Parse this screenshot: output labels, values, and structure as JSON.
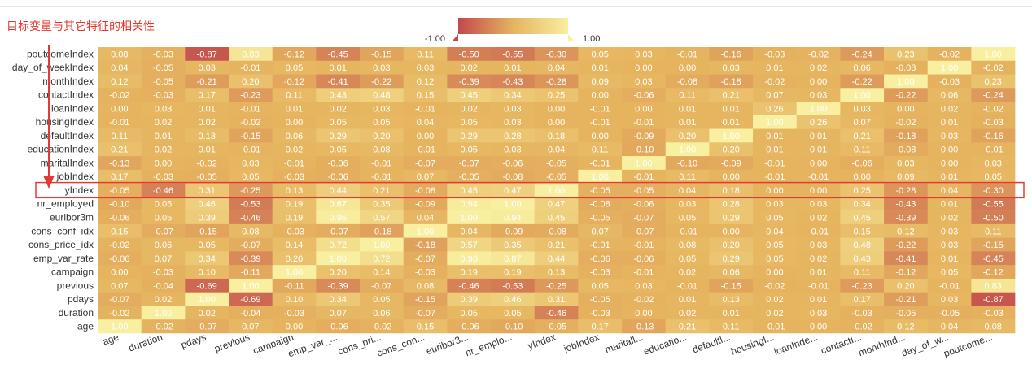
{
  "title": "目标变量与其它特征的相关性",
  "colors": {
    "low": "#c2484d",
    "mid": "#e6b45f",
    "high": "#f8efa0",
    "highlight": "#e53935",
    "title": "#e8342a"
  },
  "chart_data": {
    "type": "heatmap",
    "title": "目标变量与其它特征的相关性",
    "visual_map": {
      "min": -1.0,
      "max": 1.0,
      "min_label": "-1.00",
      "max_label": "1.00",
      "orient": "horizontal",
      "position": "top-center"
    },
    "x_tick_labels": [
      "age",
      "duration",
      "pdays",
      "previous",
      "campaign",
      "emp_var_...",
      "cons_pri...",
      "cons_con...",
      "euribor3...",
      "nr_emplo...",
      "yIndex",
      "jobIndex",
      "maritall...",
      "educatio...",
      "defaultl...",
      "housingI...",
      "loanInde...",
      "contactI...",
      "monthInd...",
      "day_of_w...",
      "poutcome..."
    ],
    "y_tick_labels": [
      "poutcomeIndex",
      "day_of_weekIndex",
      "monthIndex",
      "contactIndex",
      "loanIndex",
      "housingIndex",
      "defaultIndex",
      "educationIndex",
      "maritalIndex",
      "jobIndex",
      "yIndex",
      "nr_employed",
      "euribor3m",
      "cons_conf_idx",
      "cons_price_idx",
      "emp_var_rate",
      "campaign",
      "previous",
      "pdays",
      "duration",
      "age"
    ],
    "highlighted_row": "yIndex",
    "values": [
      [
        0.08,
        -0.03,
        -0.87,
        0.83,
        -0.12,
        -0.45,
        -0.15,
        0.11,
        -0.5,
        -0.55,
        -0.3,
        0.05,
        0.03,
        -0.01,
        -0.16,
        -0.03,
        -0.02,
        -0.24,
        0.23,
        -0.02,
        1.0
      ],
      [
        0.04,
        -0.05,
        0.03,
        -0.01,
        0.05,
        0.01,
        0.03,
        0.03,
        0.02,
        0.01,
        0.04,
        0.01,
        -0.0,
        0.0,
        0.03,
        0.01,
        0.02,
        0.06,
        -0.03,
        1.0,
        -0.02
      ],
      [
        0.12,
        -0.05,
        -0.21,
        0.2,
        -0.12,
        -0.41,
        -0.22,
        0.12,
        -0.39,
        -0.43,
        -0.28,
        0.09,
        0.03,
        -0.08,
        -0.18,
        -0.02,
        0.0,
        -0.22,
        1.0,
        -0.03,
        0.23
      ],
      [
        -0.02,
        -0.03,
        0.17,
        -0.23,
        0.11,
        0.43,
        0.48,
        0.15,
        0.45,
        0.34,
        0.25,
        0.0,
        -0.06,
        0.11,
        0.21,
        0.07,
        0.03,
        1.0,
        -0.22,
        0.06,
        -0.24
      ],
      [
        0.0,
        0.03,
        0.01,
        -0.01,
        0.01,
        0.02,
        0.03,
        -0.01,
        0.02,
        0.03,
        0.0,
        -0.01,
        0.0,
        0.01,
        0.01,
        0.26,
        1.0,
        0.03,
        0.0,
        0.02,
        -0.02
      ],
      [
        -0.01,
        0.02,
        0.02,
        -0.02,
        -0.0,
        0.05,
        0.05,
        0.04,
        0.05,
        0.03,
        0.0,
        -0.01,
        -0.01,
        0.01,
        0.01,
        1.0,
        0.26,
        0.07,
        -0.02,
        0.01,
        -0.03
      ],
      [
        0.11,
        0.01,
        0.13,
        -0.15,
        0.06,
        0.29,
        0.2,
        -0.0,
        0.29,
        0.28,
        0.18,
        0.0,
        -0.09,
        0.2,
        1.0,
        0.01,
        0.01,
        0.21,
        -0.18,
        0.03,
        -0.16
      ],
      [
        0.21,
        0.02,
        0.01,
        -0.01,
        0.02,
        0.05,
        0.08,
        -0.01,
        0.05,
        0.03,
        0.04,
        0.11,
        -0.1,
        1.0,
        0.2,
        0.01,
        0.01,
        0.11,
        -0.08,
        0.0,
        -0.01
      ],
      [
        -0.13,
        -0.0,
        -0.02,
        0.03,
        -0.01,
        -0.06,
        -0.01,
        -0.07,
        -0.07,
        -0.06,
        -0.05,
        -0.01,
        1.0,
        -0.1,
        -0.09,
        -0.01,
        0.0,
        -0.06,
        0.03,
        -0.0,
        0.03
      ],
      [
        0.17,
        -0.03,
        -0.05,
        0.05,
        -0.03,
        -0.06,
        -0.01,
        0.07,
        -0.05,
        -0.08,
        -0.05,
        1.0,
        -0.01,
        0.11,
        0.0,
        -0.01,
        -0.01,
        0.0,
        0.09,
        0.01,
        0.05
      ],
      [
        -0.05,
        -0.46,
        0.31,
        -0.25,
        0.13,
        0.44,
        0.21,
        -0.08,
        0.45,
        0.47,
        1.0,
        -0.05,
        -0.05,
        0.04,
        0.18,
        0.0,
        0.0,
        0.25,
        -0.28,
        0.04,
        -0.3
      ],
      [
        -0.1,
        0.05,
        0.46,
        -0.53,
        0.19,
        0.87,
        0.35,
        -0.09,
        0.94,
        1.0,
        0.47,
        -0.08,
        -0.06,
        0.03,
        0.28,
        0.03,
        0.03,
        0.34,
        -0.43,
        0.01,
        -0.55
      ],
      [
        -0.06,
        0.05,
        0.39,
        -0.46,
        0.19,
        0.96,
        0.57,
        0.04,
        1.0,
        0.94,
        0.45,
        -0.05,
        -0.07,
        0.05,
        0.29,
        0.05,
        0.02,
        0.45,
        -0.39,
        0.02,
        -0.5
      ],
      [
        0.15,
        -0.07,
        -0.15,
        0.08,
        -0.03,
        -0.07,
        -0.18,
        1.0,
        0.04,
        -0.09,
        -0.08,
        0.07,
        -0.07,
        -0.01,
        -0.0,
        0.04,
        -0.01,
        0.15,
        0.12,
        0.03,
        0.11
      ],
      [
        -0.02,
        0.06,
        0.05,
        -0.07,
        0.14,
        0.72,
        1.0,
        -0.18,
        0.57,
        0.35,
        0.21,
        -0.01,
        -0.01,
        0.08,
        0.2,
        0.05,
        0.03,
        0.48,
        -0.22,
        0.03,
        -0.15
      ],
      [
        -0.06,
        0.07,
        0.34,
        -0.39,
        0.2,
        1.0,
        0.72,
        -0.07,
        0.96,
        0.87,
        0.44,
        -0.06,
        -0.06,
        0.05,
        0.29,
        0.05,
        0.02,
        0.43,
        -0.41,
        0.01,
        -0.45
      ],
      [
        -0.0,
        -0.03,
        0.1,
        -0.11,
        1.0,
        0.2,
        0.14,
        -0.03,
        0.19,
        0.19,
        0.13,
        -0.03,
        -0.01,
        0.02,
        0.06,
        -0.0,
        0.01,
        0.11,
        -0.12,
        0.05,
        -0.12
      ],
      [
        0.07,
        -0.04,
        -0.69,
        1.0,
        -0.11,
        -0.39,
        -0.07,
        0.08,
        -0.46,
        -0.53,
        -0.25,
        0.05,
        0.03,
        -0.01,
        -0.15,
        -0.02,
        -0.01,
        -0.23,
        0.2,
        -0.01,
        0.83
      ],
      [
        -0.07,
        0.02,
        1.0,
        -0.69,
        0.1,
        0.34,
        0.05,
        -0.15,
        0.39,
        0.46,
        0.31,
        -0.05,
        -0.02,
        0.01,
        0.13,
        0.02,
        0.01,
        0.17,
        -0.21,
        0.03,
        -0.87
      ],
      [
        -0.02,
        1.0,
        0.02,
        -0.04,
        -0.03,
        0.07,
        0.06,
        -0.07,
        0.05,
        0.05,
        -0.46,
        -0.03,
        -0.0,
        0.02,
        0.01,
        0.02,
        0.03,
        -0.03,
        -0.05,
        -0.05,
        -0.03
      ],
      [
        1.0,
        -0.02,
        -0.07,
        0.07,
        -0.0,
        -0.06,
        -0.02,
        0.15,
        -0.06,
        -0.1,
        -0.05,
        0.17,
        -0.13,
        0.21,
        0.11,
        -0.01,
        0.0,
        -0.02,
        0.12,
        0.04,
        0.08
      ]
    ]
  }
}
